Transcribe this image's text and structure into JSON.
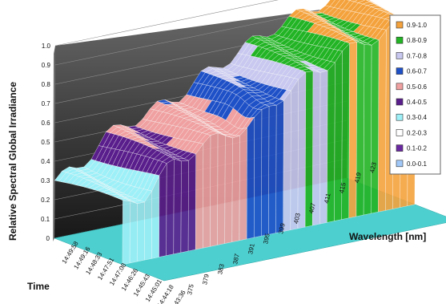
{
  "chart_data": {
    "type": "surface",
    "zlabel": "Relative Spectral Global Irradiance",
    "xlabel": "Wavelength [nm]",
    "ylabel": "Time",
    "zlim": [
      0,
      1.0
    ],
    "z_ticks": [
      "0",
      "0.1",
      "0.2",
      "0.3",
      "0.4",
      "0.5",
      "0.6",
      "0.7",
      "0.8",
      "0.9",
      "1.0"
    ],
    "wavelength_ticks": [
      "375",
      "379",
      "383",
      "387",
      "391",
      "395",
      "399",
      "403",
      "407",
      "411",
      "415",
      "419",
      "423"
    ],
    "time_ticks": [
      "14:49:58",
      "14:49:16",
      "14:48:33",
      "14:47:51",
      "14:47:08",
      "14:46:26",
      "14:45:43",
      "14:45:01",
      "14:44:18",
      "14:43:36"
    ],
    "legend": [
      {
        "label": "0.9-1.0",
        "color": "#f4a23c"
      },
      {
        "label": "0.8-0.9",
        "color": "#22b424"
      },
      {
        "label": "0.7-0.8",
        "color": "#c8c8f0"
      },
      {
        "label": "0.6-0.7",
        "color": "#1e50c8"
      },
      {
        "label": "0.5-0.6",
        "color": "#f0a0a0"
      },
      {
        "label": "0.4-0.5",
        "color": "#5a1e8c"
      },
      {
        "label": "0.3-0.4",
        "color": "#9ef0f8"
      },
      {
        "label": "0.2-0.3",
        "color": "#ffffff"
      },
      {
        "label": "0.1-0.2",
        "color": "#6a28a0"
      },
      {
        "label": "0.0-0.1",
        "color": "#a0c8f8"
      }
    ],
    "surface_profile": {
      "wavelength": [
        375,
        379,
        383,
        387,
        391,
        395,
        399,
        403,
        407,
        411,
        415,
        419,
        423
      ],
      "irradiance": [
        0.3,
        0.34,
        0.47,
        0.52,
        0.56,
        0.6,
        0.68,
        0.74,
        0.8,
        0.86,
        0.9,
        0.94,
        0.96
      ]
    }
  }
}
